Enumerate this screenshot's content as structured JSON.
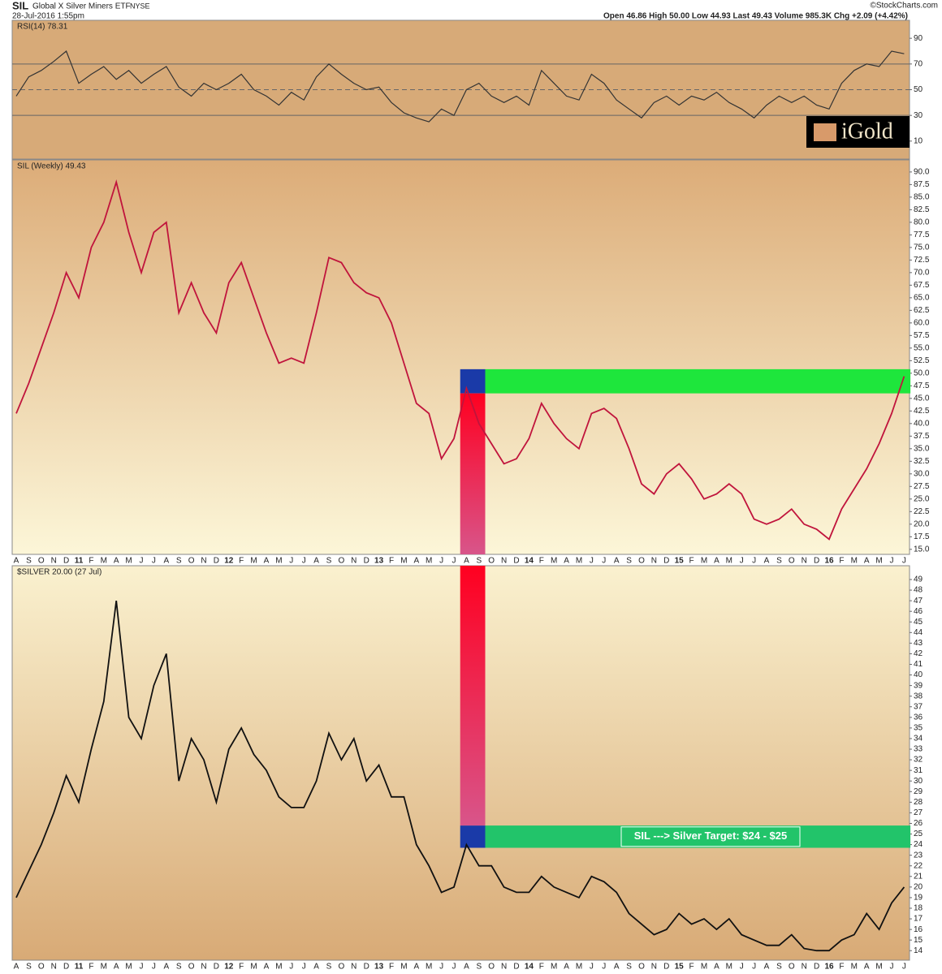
{
  "header": {
    "symbol": "SIL",
    "name": "Global X Silver Miners ETF",
    "exchange": "NYSE",
    "date": "28-Jul-2016 1:55pm",
    "quote": "Open 46.86 High 50.00 Low 44.93 Last 49.43 Volume 985.3K Chg +2.09 (+4.42%)",
    "credit": "©StockCharts.com"
  },
  "logo": "iGold",
  "chart_data": [
    {
      "type": "line",
      "title": "RSI(14) 78.31",
      "color": "#333333",
      "values": [
        45,
        60,
        65,
        72,
        80,
        55,
        62,
        68,
        58,
        65,
        55,
        62,
        68,
        52,
        45,
        55,
        50,
        55,
        62,
        50,
        45,
        38,
        48,
        42,
        60,
        70,
        62,
        55,
        50,
        52,
        40,
        32,
        28,
        25,
        35,
        30,
        50,
        55,
        45,
        40,
        45,
        38,
        65,
        55,
        45,
        42,
        62,
        55,
        42,
        35,
        28,
        40,
        45,
        38,
        45,
        42,
        48,
        40,
        35,
        28,
        38,
        45,
        40,
        45,
        38,
        35,
        55,
        65,
        70,
        68,
        80,
        78
      ],
      "ylim": [
        -4,
        104
      ],
      "yticks": [
        10,
        30,
        50,
        70,
        90
      ],
      "reference_lines": [
        30,
        50,
        70
      ]
    },
    {
      "type": "line",
      "title": "SIL (Weekly) 49.43",
      "color": "#c0143c",
      "categories": [
        "A",
        "S",
        "O",
        "N",
        "D",
        "11",
        "F",
        "M",
        "A",
        "M",
        "J",
        "J",
        "A",
        "S",
        "O",
        "N",
        "D",
        "12",
        "F",
        "M",
        "A",
        "M",
        "J",
        "J",
        "A",
        "S",
        "O",
        "N",
        "D",
        "13",
        "F",
        "M",
        "A",
        "M",
        "J",
        "J",
        "A",
        "S",
        "O",
        "N",
        "D",
        "14",
        "F",
        "M",
        "A",
        "M",
        "J",
        "J",
        "A",
        "S",
        "O",
        "N",
        "D",
        "15",
        "F",
        "M",
        "A",
        "M",
        "J",
        "J",
        "A",
        "S",
        "O",
        "N",
        "D",
        "16",
        "F",
        "M",
        "A",
        "M",
        "J",
        "J"
      ],
      "values": [
        42,
        48,
        55,
        62,
        70,
        65,
        75,
        80,
        88,
        78,
        70,
        78,
        80,
        62,
        68,
        62,
        58,
        68,
        72,
        65,
        58,
        52,
        53,
        52,
        62,
        73,
        72,
        68,
        66,
        65,
        60,
        52,
        44,
        42,
        33,
        37,
        47,
        40,
        36,
        32,
        33,
        37,
        44,
        40,
        37,
        35,
        42,
        43,
        41,
        35,
        28,
        26,
        30,
        32,
        29,
        25,
        26,
        28,
        26,
        21,
        20,
        21,
        23,
        20,
        19,
        17,
        23,
        27,
        31,
        36,
        42,
        49.4
      ],
      "ylim": [
        14,
        92.4
      ],
      "yticks": [
        {
          "value": 15,
          "label": "15.0"
        },
        {
          "value": 17.5,
          "label": "17.5"
        },
        {
          "value": 20,
          "label": "20.0"
        },
        {
          "value": 22.5,
          "label": "22.5"
        },
        {
          "value": 25,
          "label": "25.0"
        },
        {
          "value": 27.5,
          "label": "27.5"
        },
        {
          "value": 30,
          "label": "30.0"
        },
        {
          "value": 32.5,
          "label": "32.5"
        },
        {
          "value": 35,
          "label": "35.0"
        },
        {
          "value": 37.5,
          "label": "37.5"
        },
        {
          "value": 40,
          "label": "40.0"
        },
        {
          "value": 42.5,
          "label": "42.5"
        },
        {
          "value": 45,
          "label": "45.0"
        },
        {
          "value": 47.5,
          "label": "47.5"
        },
        {
          "value": 50,
          "label": "50.0"
        },
        {
          "value": 52.5,
          "label": "52.5"
        },
        {
          "value": 55,
          "label": "55.0"
        },
        {
          "value": 57.5,
          "label": "57.5"
        },
        {
          "value": 60,
          "label": "60.0"
        },
        {
          "value": 62.5,
          "label": "62.5"
        },
        {
          "value": 65,
          "label": "65.0"
        },
        {
          "value": 67.5,
          "label": "67.5"
        },
        {
          "value": 70,
          "label": "70.0"
        },
        {
          "value": 72.5,
          "label": "72.5"
        },
        {
          "value": 75,
          "label": "75.0"
        },
        {
          "value": 77.5,
          "label": "77.5"
        },
        {
          "value": 80,
          "label": "80.0"
        },
        {
          "value": 82.5,
          "label": "82.5"
        },
        {
          "value": 85,
          "label": "85.0"
        },
        {
          "value": 87.5,
          "label": "87.5"
        },
        {
          "value": 90,
          "label": "90.0"
        }
      ],
      "bands": [
        {
          "xlim": [
            35.5,
            37.5
          ],
          "ylim": [
            46,
            50.8
          ],
          "color": "#1a3aa8"
        },
        {
          "xlim": [
            37.5,
            71.5
          ],
          "ylim": [
            46,
            50.8
          ],
          "color": "#1ee63c"
        }
      ]
    },
    {
      "type": "line",
      "title": "$SILVER 20.00 (27 Jul)",
      "color": "#111111",
      "categories": [
        "A",
        "S",
        "O",
        "N",
        "D",
        "11",
        "F",
        "M",
        "A",
        "M",
        "J",
        "J",
        "A",
        "S",
        "O",
        "N",
        "D",
        "12",
        "F",
        "M",
        "A",
        "M",
        "J",
        "J",
        "A",
        "S",
        "O",
        "N",
        "D",
        "13",
        "F",
        "M",
        "A",
        "M",
        "J",
        "J",
        "A",
        "S",
        "O",
        "N",
        "D",
        "14",
        "F",
        "M",
        "A",
        "M",
        "J",
        "J",
        "A",
        "S",
        "O",
        "N",
        "D",
        "15",
        "F",
        "M",
        "A",
        "M",
        "J",
        "J",
        "A",
        "S",
        "O",
        "N",
        "D",
        "16",
        "F",
        "M",
        "A",
        "M",
        "J",
        "J"
      ],
      "values": [
        19,
        21.5,
        24,
        27,
        30.5,
        28,
        33,
        37.5,
        47,
        36,
        34,
        39,
        42,
        30,
        34,
        32,
        28,
        33,
        35,
        32.5,
        31,
        28.5,
        27.5,
        27.5,
        30,
        34.5,
        32,
        34,
        30,
        31.5,
        28.5,
        28.5,
        24,
        22,
        19.5,
        20,
        24,
        22,
        22,
        20,
        19.5,
        19.5,
        21,
        20,
        19.5,
        19,
        21,
        20.5,
        19.5,
        17.5,
        16.5,
        15.5,
        16,
        17.5,
        16.5,
        17,
        16,
        17,
        15.5,
        15,
        14.5,
        14.5,
        15.5,
        14.2,
        14,
        14,
        15,
        15.5,
        17.5,
        16,
        18.5,
        20
      ],
      "ylim": [
        13.1,
        50.3
      ],
      "yticks": [
        14,
        15,
        16,
        17,
        18,
        19,
        20,
        21,
        22,
        23,
        24,
        25,
        26,
        27,
        28,
        29,
        30,
        31,
        32,
        33,
        34,
        35,
        36,
        37,
        38,
        39,
        40,
        41,
        42,
        43,
        44,
        45,
        46,
        47,
        48,
        49
      ],
      "bands": [
        {
          "xlim": [
            35.5,
            37.5
          ],
          "ylim": [
            23.7,
            25.8
          ],
          "color": "#1a3aa8"
        },
        {
          "xlim": [
            37.5,
            71.5
          ],
          "ylim": [
            23.7,
            25.8
          ],
          "color": "#22c46a"
        }
      ],
      "annotation": "SIL ---> Silver Target: $24 - $25"
    }
  ]
}
